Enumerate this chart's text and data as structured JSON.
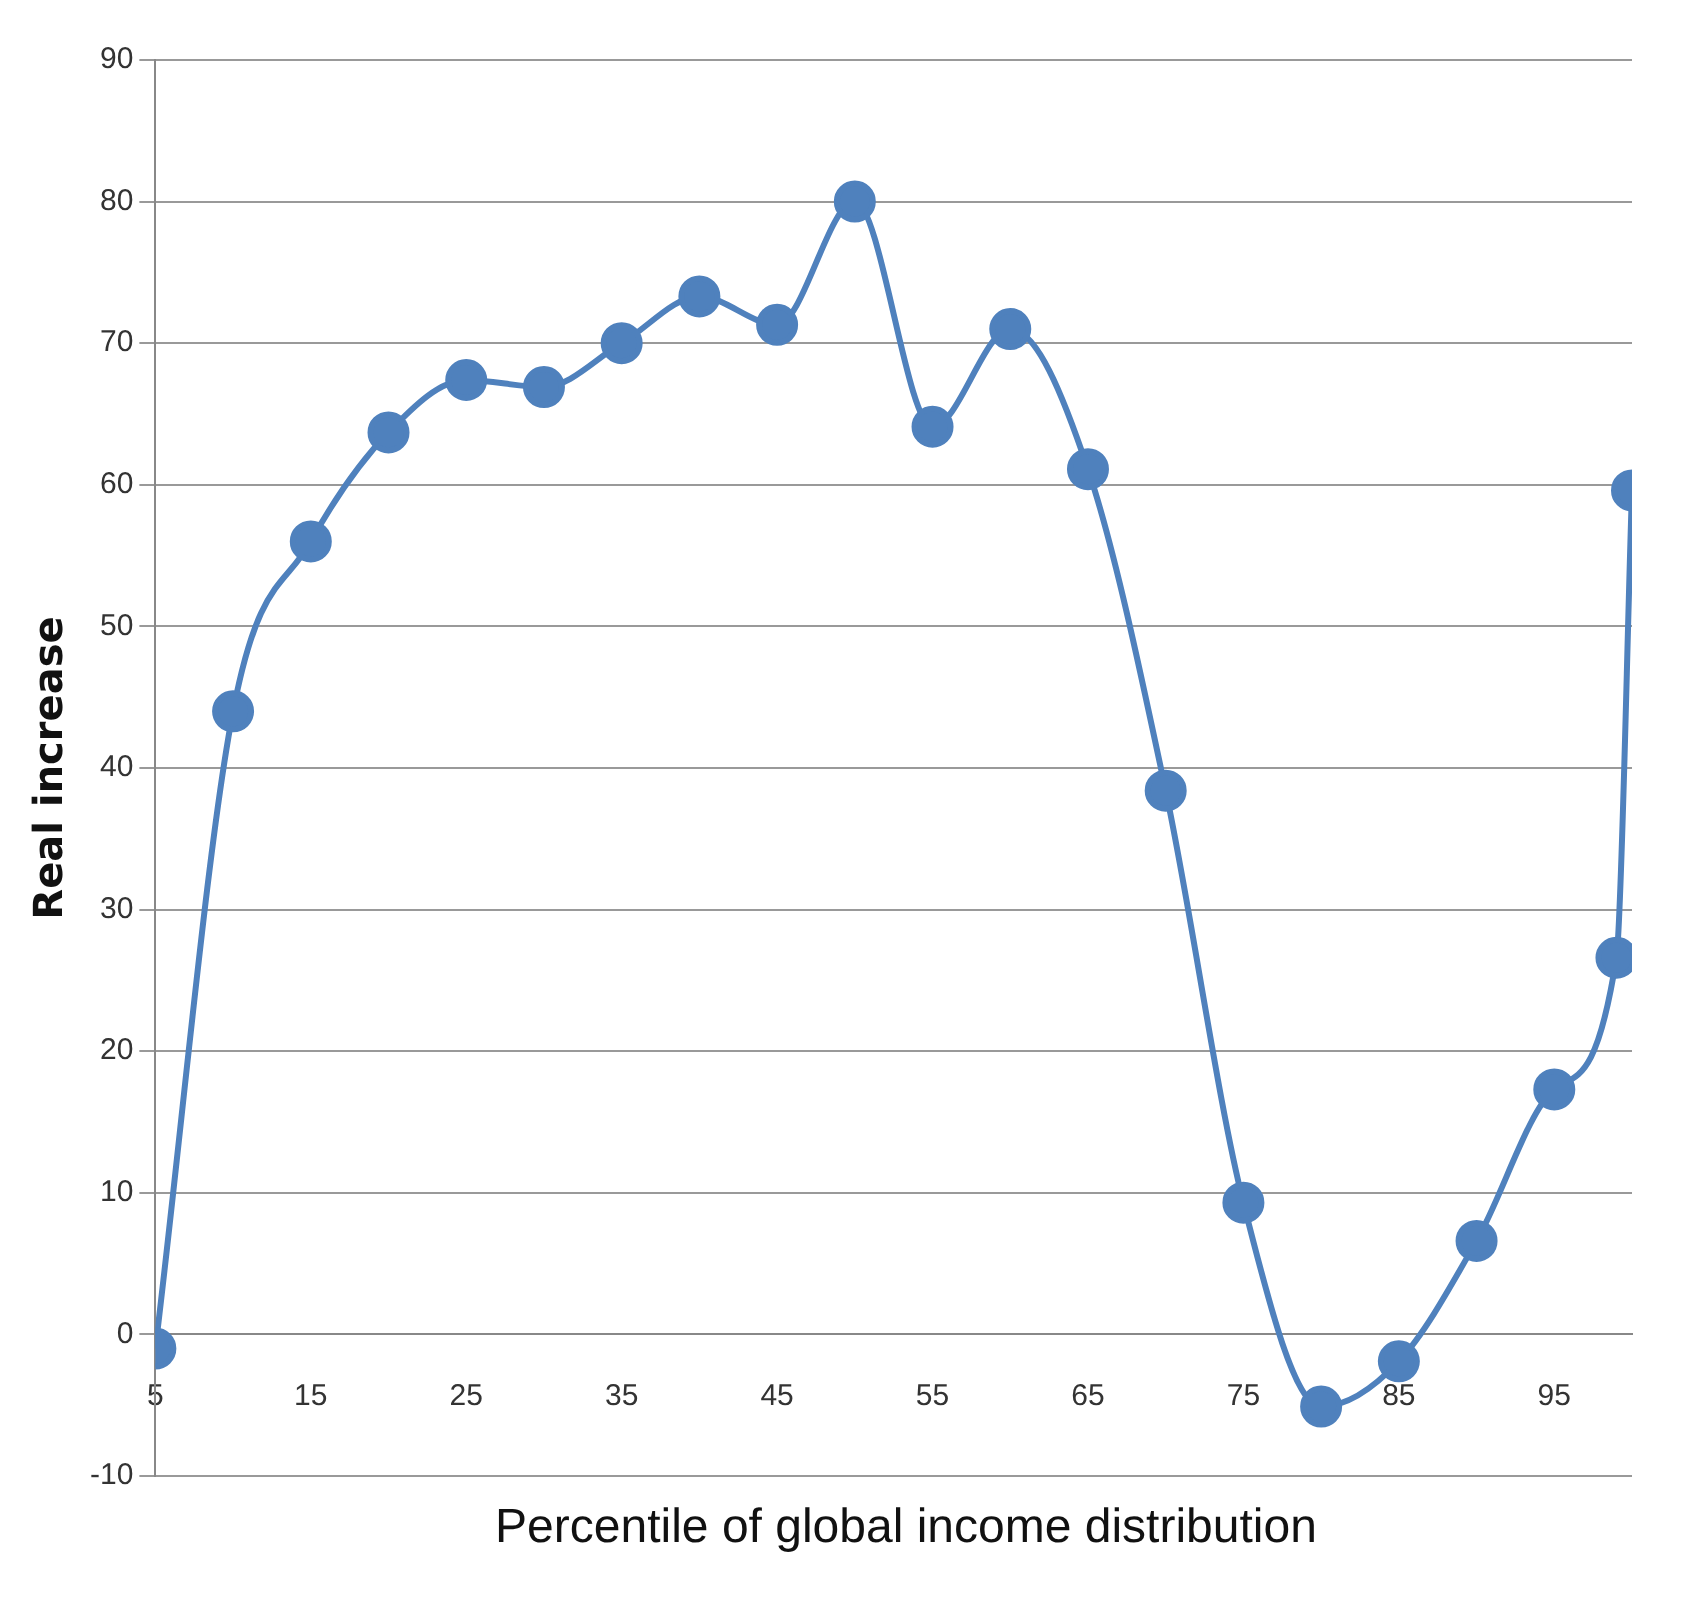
{
  "chart_data": {
    "type": "line",
    "xlabel": "Percentile of global income distribution",
    "ylabel": "Real increase",
    "x": [
      5,
      10,
      15,
      20,
      25,
      30,
      35,
      40,
      45,
      50,
      55,
      60,
      65,
      70,
      75,
      80,
      85,
      90,
      95,
      99,
      100
    ],
    "series": [
      {
        "color": "#4f81bd",
        "values": [
          -1,
          44,
          56,
          63.7,
          67.4,
          66.9,
          70,
          73.3,
          71.3,
          80,
          64.1,
          71,
          61.1,
          38.4,
          9.3,
          -5.1,
          -1.9,
          6.6,
          17.3,
          26.6,
          59.6
        ]
      }
    ],
    "xlim": [
      5,
      100
    ],
    "xticks": [
      5,
      15,
      25,
      35,
      45,
      55,
      65,
      75,
      85,
      95
    ],
    "ylim": [
      -10,
      90
    ],
    "yticks": [
      -10,
      0,
      10,
      20,
      30,
      40,
      50,
      60,
      70,
      80,
      90
    ],
    "grid": "y",
    "legend": false,
    "marker": "circle",
    "line_style": "solid"
  }
}
